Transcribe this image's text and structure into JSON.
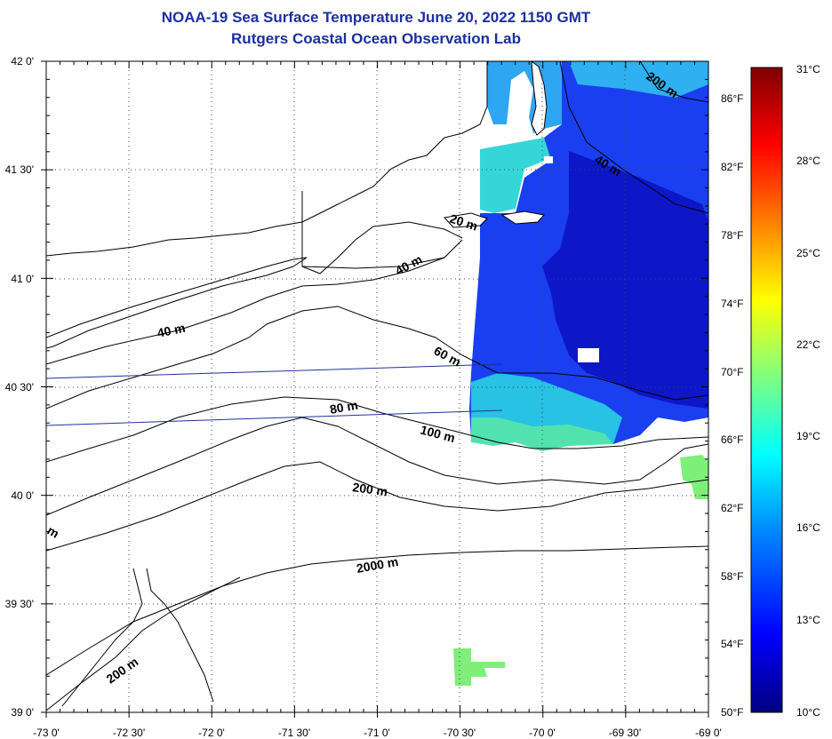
{
  "title": "NOAA-19 Sea Surface Temperature June 20, 2022 1150 GMT",
  "subtitle": "Rutgers Coastal Ocean Observation Lab",
  "map": {
    "lat_labels": [
      "42 0'",
      "41 30'",
      "41 0'",
      "40 30'",
      "40 0'",
      "39 30'",
      "39 0'"
    ],
    "lon_labels": [
      "-73 0'",
      "-72 30'",
      "-72 0'",
      "-71 30'",
      "-71 0'",
      "-70 30'",
      "-70 0'",
      "-69 30'",
      "-69 0'"
    ],
    "contour_labels": [
      "200 m",
      "40 m",
      "20 m",
      "40 m",
      "40 m",
      "60 m",
      "80 m",
      "100 m",
      "200 m",
      "2000 m",
      "200 m",
      "m"
    ],
    "colors": {
      "title": "#1c2fa3",
      "land": "#ffffff",
      "contour": "#000000",
      "track": "#2030a0"
    }
  },
  "colorbar": {
    "celsius_labels": [
      "31°C",
      "28°C",
      "25°C",
      "22°C",
      "19°C",
      "16°C",
      "13°C",
      "10°C"
    ],
    "fahrenheit_labels": [
      "86°F",
      "82°F",
      "78°F",
      "74°F",
      "70°F",
      "66°F",
      "62°F",
      "58°F",
      "54°F",
      "50°F"
    ],
    "colormap": [
      "#00007f",
      "#0000ff",
      "#007fff",
      "#00ffff",
      "#7fff7f",
      "#ffff00",
      "#ff7f00",
      "#ff0000",
      "#7f0000"
    ]
  }
}
